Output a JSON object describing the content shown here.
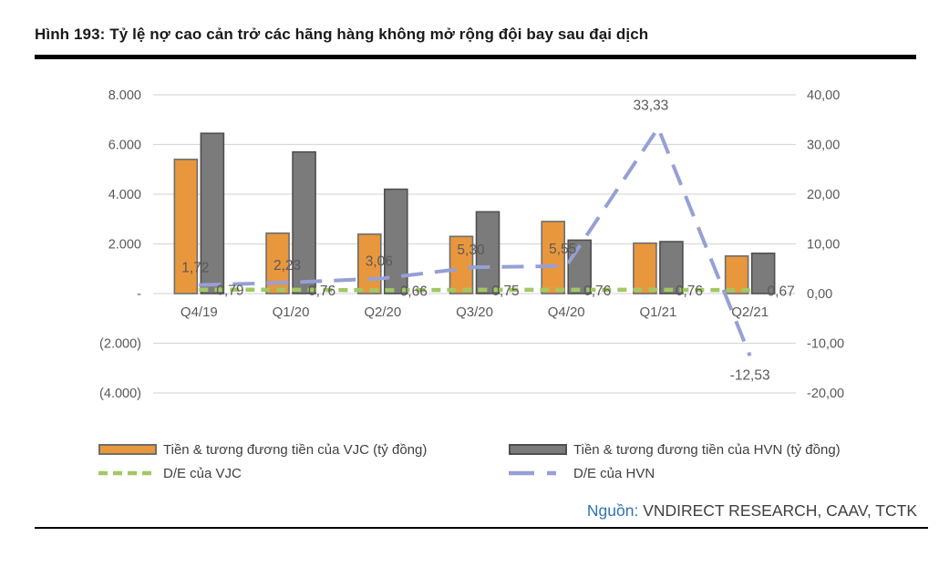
{
  "figure": {
    "title": "Hình 193: Tỷ lệ nợ cao cản trở các hãng hàng không mở rộng đội bay sau đại dịch",
    "source_label": "Nguồn:",
    "source_text": " VNDIRECT RESEARCH, CAAV, TCTK"
  },
  "legend": {
    "vjc_bar": "Tiền & tương đương tiền của VJC (tỷ đồng)",
    "hvn_bar": "Tiền & tương đương tiền của HVN (tỷ đồng)",
    "vjc_line": "D/E của VJC",
    "hvn_line": "D/E của HVN"
  },
  "colors": {
    "vjc_bar_fill": "#E8973D",
    "vjc_bar_border": "#6e6e6e",
    "hvn_bar_fill": "#7b7b7b",
    "hvn_bar_border": "#4f4f4f",
    "vjc_line": "#A0C864",
    "hvn_line": "#96A0D5",
    "gridline": "#D9D9D9",
    "axis_text": "#595959",
    "source_label_color": "#2E74B5"
  },
  "chart_data": {
    "type": "combo-bar-line",
    "categories": [
      "Q4/19",
      "Q1/20",
      "Q2/20",
      "Q3/20",
      "Q4/20",
      "Q1/21",
      "Q2/21"
    ],
    "series": [
      {
        "name": "Tiền & tương đương tiền của VJC (tỷ đồng)",
        "type": "bar",
        "axis": "left",
        "values": [
          5400,
          2430,
          2390,
          2300,
          2900,
          2030,
          1510
        ]
      },
      {
        "name": "Tiền & tương đương tiền của HVN (tỷ đồng)",
        "type": "bar",
        "axis": "left",
        "values": [
          6450,
          5700,
          4200,
          3290,
          2150,
          2090,
          1620
        ]
      },
      {
        "name": "D/E của VJC",
        "type": "line",
        "style": "dashed",
        "axis": "right",
        "values": [
          0.79,
          0.76,
          0.66,
          0.75,
          0.76,
          0.76,
          0.67
        ],
        "labels": [
          "0,79",
          "0,76",
          "0,66",
          "0,75",
          "0,76",
          "0,76",
          "0,67"
        ]
      },
      {
        "name": "D/E của HVN",
        "type": "line",
        "style": "dashed",
        "axis": "right",
        "values": [
          1.72,
          2.23,
          3.06,
          5.3,
          5.55,
          33.33,
          -12.53
        ],
        "labels": [
          "1,72",
          "2,23",
          "3,06",
          "5,30",
          "5,55",
          "33,33",
          "-12,53"
        ]
      }
    ],
    "left_axis": {
      "ticks": [
        "8.000",
        "6.000",
        "4.000",
        "2.000",
        "-",
        "(2.000)",
        "(4.000)"
      ],
      "values": [
        8000,
        6000,
        4000,
        2000,
        0,
        -2000,
        -4000
      ],
      "range": [
        -4000,
        8000
      ]
    },
    "right_axis": {
      "ticks": [
        "40,00",
        "30,00",
        "20,00",
        "10,00",
        "0,00",
        "-10,00",
        "-20,00"
      ],
      "values": [
        40,
        30,
        20,
        10,
        0,
        -10,
        -20
      ],
      "range": [
        -20,
        40
      ]
    },
    "grid": true,
    "legend_position": "bottom"
  }
}
